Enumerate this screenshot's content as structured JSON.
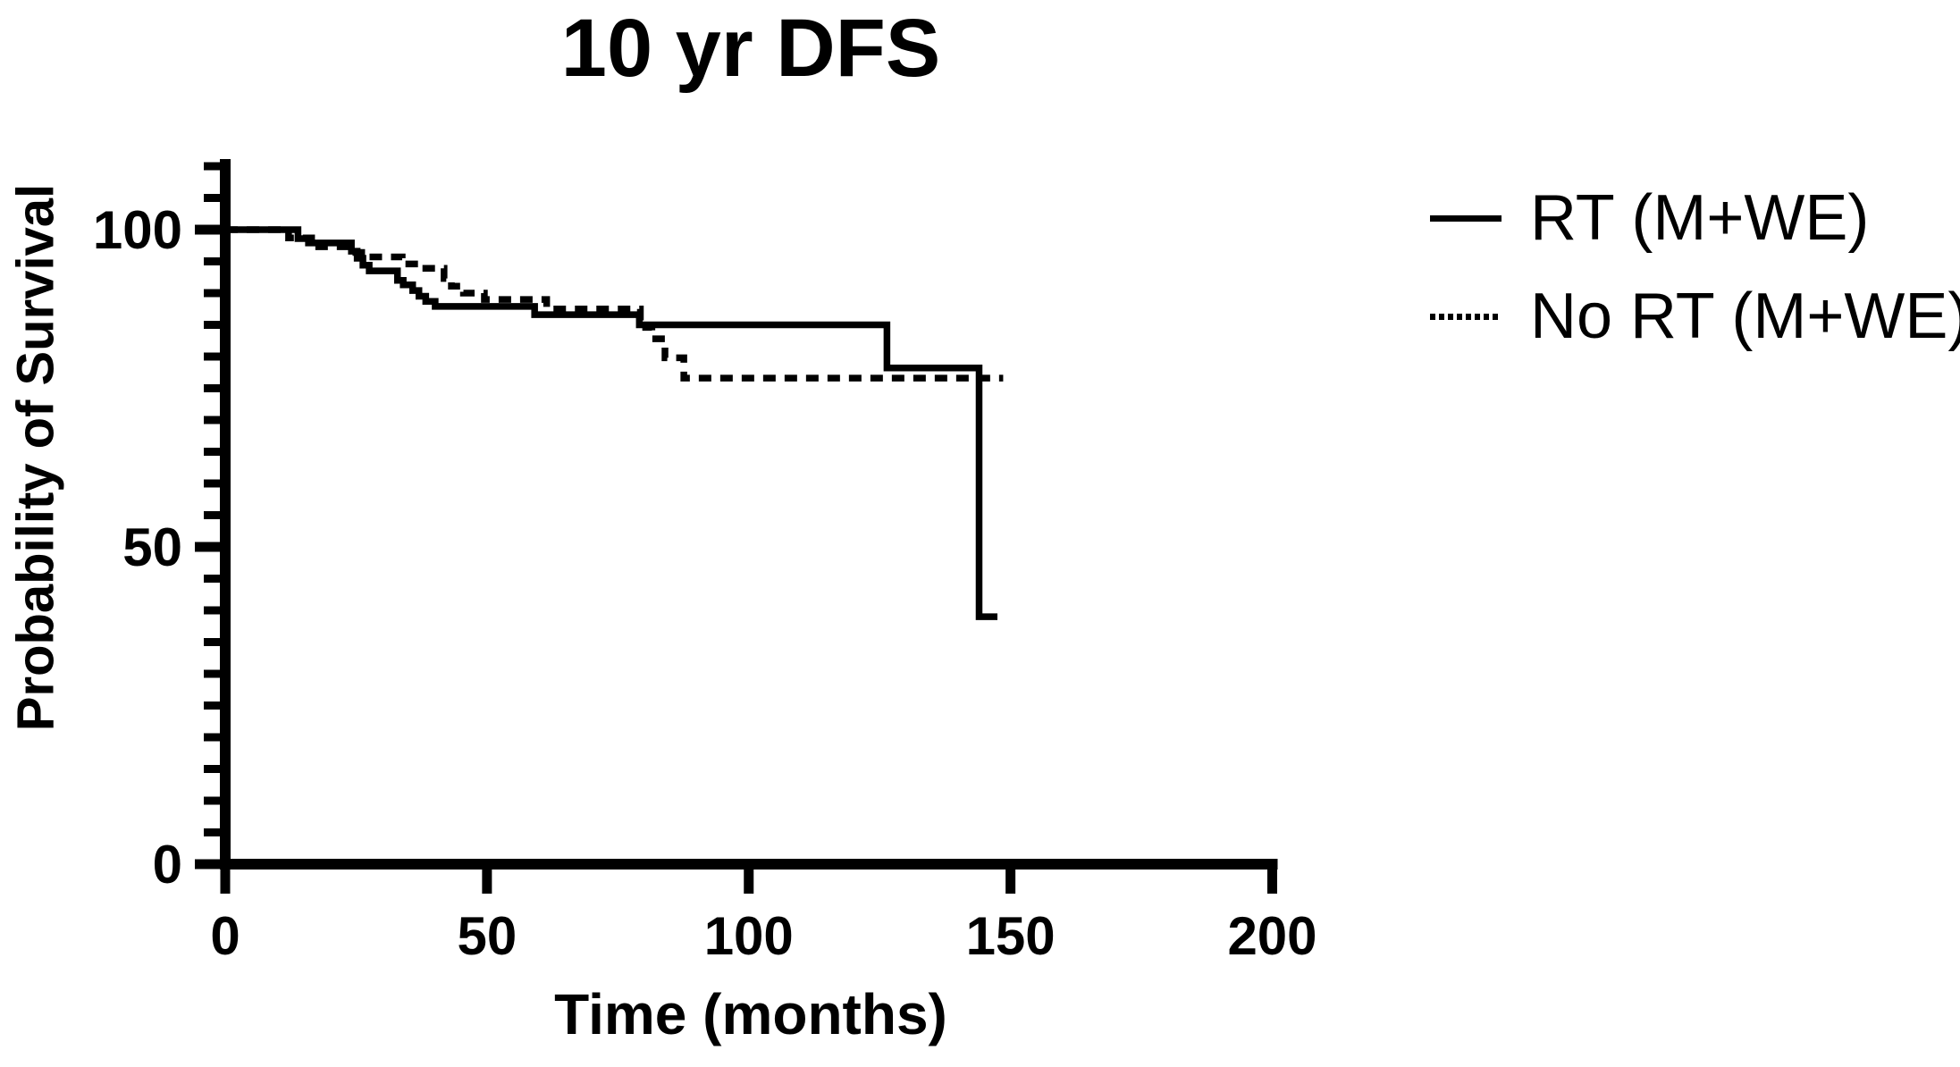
{
  "title": "10 yr DFS",
  "colors": {
    "foreground": "#000000",
    "background": "#ffffff"
  },
  "legend": {
    "items": [
      {
        "label": "RT (M+WE)",
        "line_style": "solid"
      },
      {
        "label": "No RT (M+WE)",
        "line_style": "dashed"
      }
    ]
  },
  "chart_data": {
    "type": "line",
    "subtype": "kaplan_meier_step",
    "title": "10 yr DFS",
    "xlabel": "Time (months)",
    "ylabel": "Probability of Survival",
    "xlim": [
      0,
      200
    ],
    "ylim": [
      0,
      110
    ],
    "x_ticks": [
      0,
      50,
      100,
      150,
      200
    ],
    "y_ticks": [
      0,
      50,
      100
    ],
    "y_minor_tick_step": 5,
    "grid": false,
    "legend_position": "top-right",
    "series": [
      {
        "name": "RT (M+WE)",
        "line_style": "solid",
        "color": "#000000",
        "start": [
          0,
          100
        ],
        "drops": [
          [
            13.9,
            98.6
          ],
          [
            15.9,
            97.9
          ],
          [
            24.1,
            96.6
          ],
          [
            25.2,
            95.5
          ],
          [
            26.3,
            94.4
          ],
          [
            27.5,
            93.5
          ],
          [
            32.9,
            92.0
          ],
          [
            34.0,
            91.3
          ],
          [
            35.8,
            90.4
          ],
          [
            37.0,
            89.5
          ],
          [
            38.3,
            88.7
          ],
          [
            40.1,
            87.9
          ],
          [
            59.1,
            86.6
          ],
          [
            79.1,
            85.0
          ],
          [
            126.4,
            78.2
          ],
          [
            144.0,
            39.0
          ]
        ],
        "end_time": 147.5
      },
      {
        "name": "No RT (M+WE)",
        "line_style": "dashed",
        "color": "#000000",
        "start": [
          0,
          100
        ],
        "drops": [
          [
            12.1,
            98.7
          ],
          [
            16.5,
            97.3
          ],
          [
            24.3,
            96.4
          ],
          [
            27.0,
            95.7
          ],
          [
            33.8,
            94.6
          ],
          [
            37.5,
            93.9
          ],
          [
            41.8,
            92.3
          ],
          [
            43.2,
            91.1
          ],
          [
            45.5,
            90.0
          ],
          [
            49.5,
            89.0
          ],
          [
            61.4,
            87.5
          ],
          [
            79.3,
            84.6
          ],
          [
            81.5,
            82.8
          ],
          [
            84.0,
            79.8
          ],
          [
            87.6,
            76.6
          ]
        ],
        "end_time": 148.6
      }
    ]
  }
}
